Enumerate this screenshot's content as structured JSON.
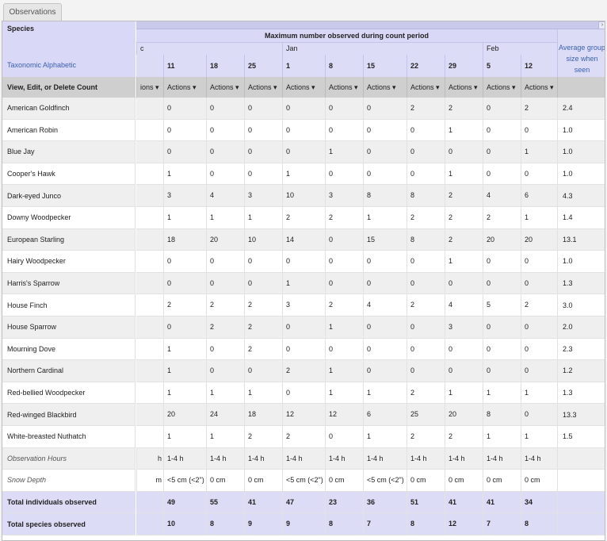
{
  "tab": {
    "label": "Observations"
  },
  "header": {
    "species_label": "Species",
    "sort_label": "Taxonomic Alphabetic",
    "actions_col_label": "View, Edit, or Delete Count",
    "max_observed_label": "Maximum number observed during count period",
    "average_label": "Average group size when seen"
  },
  "months": [
    {
      "label": "c"
    },
    {
      "label": "Jan"
    },
    {
      "label": "Feb"
    }
  ],
  "days": [
    "11",
    "18",
    "25",
    "1",
    "8",
    "15",
    "22",
    "29",
    "5",
    "12"
  ],
  "actions": {
    "partial_label": "ions ▾",
    "label": "Actions ▾"
  },
  "rows": [
    {
      "species": "American Goldfinch",
      "values": [
        "0",
        "0",
        "0",
        "0",
        "0",
        "0",
        "2",
        "2",
        "0",
        "2"
      ],
      "avg": "2.4"
    },
    {
      "species": "American Robin",
      "values": [
        "0",
        "0",
        "0",
        "0",
        "0",
        "0",
        "0",
        "1",
        "0",
        "0"
      ],
      "avg": "1.0"
    },
    {
      "species": "Blue Jay",
      "values": [
        "0",
        "0",
        "0",
        "0",
        "1",
        "0",
        "0",
        "0",
        "0",
        "1"
      ],
      "avg": "1.0"
    },
    {
      "species": "Cooper's Hawk",
      "values": [
        "1",
        "0",
        "0",
        "1",
        "0",
        "0",
        "0",
        "1",
        "0",
        "0"
      ],
      "avg": "1.0"
    },
    {
      "species": "Dark-eyed Junco",
      "values": [
        "3",
        "4",
        "3",
        "10",
        "3",
        "8",
        "8",
        "2",
        "4",
        "6"
      ],
      "avg": "4.3"
    },
    {
      "species": "Downy Woodpecker",
      "values": [
        "1",
        "1",
        "1",
        "2",
        "2",
        "1",
        "2",
        "2",
        "2",
        "1"
      ],
      "avg": "1.4"
    },
    {
      "species": "European Starling",
      "values": [
        "18",
        "20",
        "10",
        "14",
        "0",
        "15",
        "8",
        "2",
        "20",
        "20"
      ],
      "avg": "13.1"
    },
    {
      "species": "Hairy Woodpecker",
      "values": [
        "0",
        "0",
        "0",
        "0",
        "0",
        "0",
        "0",
        "1",
        "0",
        "0"
      ],
      "avg": "1.0"
    },
    {
      "species": "Harris's Sparrow",
      "values": [
        "0",
        "0",
        "0",
        "1",
        "0",
        "0",
        "0",
        "0",
        "0",
        "0"
      ],
      "avg": "1.3"
    },
    {
      "species": "House Finch",
      "values": [
        "2",
        "2",
        "2",
        "3",
        "2",
        "4",
        "2",
        "4",
        "5",
        "2"
      ],
      "avg": "3.0"
    },
    {
      "species": "House Sparrow",
      "values": [
        "0",
        "2",
        "2",
        "0",
        "1",
        "0",
        "0",
        "3",
        "0",
        "0"
      ],
      "avg": "2.0"
    },
    {
      "species": "Mourning Dove",
      "values": [
        "1",
        "0",
        "2",
        "0",
        "0",
        "0",
        "0",
        "0",
        "0",
        "0"
      ],
      "avg": "2.3"
    },
    {
      "species": "Northern Cardinal",
      "values": [
        "1",
        "0",
        "0",
        "2",
        "1",
        "0",
        "0",
        "0",
        "0",
        "0"
      ],
      "avg": "1.2"
    },
    {
      "species": "Red-bellied Woodpecker",
      "values": [
        "1",
        "1",
        "1",
        "0",
        "1",
        "1",
        "2",
        "1",
        "1",
        "1"
      ],
      "avg": "1.3"
    },
    {
      "species": "Red-winged Blackbird",
      "values": [
        "20",
        "24",
        "18",
        "12",
        "12",
        "6",
        "25",
        "20",
        "8",
        "0"
      ],
      "avg": "13.3"
    },
    {
      "species": "White-breasted Nuthatch",
      "values": [
        "1",
        "1",
        "2",
        "2",
        "0",
        "1",
        "2",
        "2",
        "1",
        "1"
      ],
      "avg": "1.5"
    }
  ],
  "observation_hours": {
    "label": "Observation Hours",
    "partial": "h",
    "values": [
      "1-4 h",
      "1-4 h",
      "1-4 h",
      "1-4 h",
      "1-4 h",
      "1-4 h",
      "1-4 h",
      "1-4 h",
      "1-4 h",
      "1-4 h"
    ]
  },
  "snow_depth": {
    "label": "Snow Depth",
    "partial": "m",
    "values": [
      "<5 cm (<2\")",
      "0 cm",
      "0 cm",
      "<5 cm (<2\")",
      "0 cm",
      "<5 cm (<2\")",
      "0 cm",
      "0 cm",
      "0 cm",
      "0 cm"
    ]
  },
  "totals": [
    {
      "label": "Total individuals observed",
      "values": [
        "49",
        "55",
        "41",
        "47",
        "23",
        "36",
        "51",
        "41",
        "41",
        "34"
      ]
    },
    {
      "label": "Total species observed",
      "values": [
        "10",
        "8",
        "9",
        "9",
        "8",
        "7",
        "8",
        "12",
        "7",
        "8"
      ]
    }
  ]
}
